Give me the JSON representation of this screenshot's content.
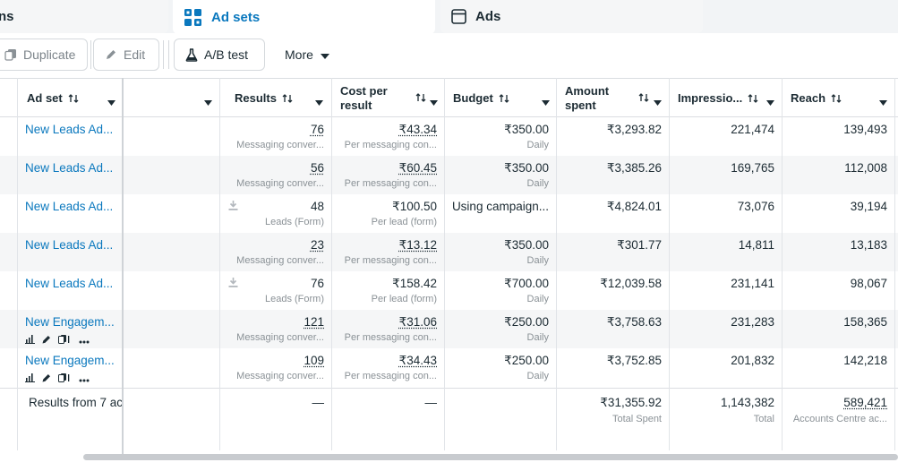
{
  "tabs": [
    {
      "label": "ns",
      "icon": "folder-icon"
    },
    {
      "label": "Ad sets",
      "icon": "grid-icon",
      "active": true
    },
    {
      "label": "Ads",
      "icon": "ad-square-icon"
    }
  ],
  "toolbar": {
    "duplicate_label": "Duplicate",
    "edit_label": "Edit",
    "ab_test_label": "A/B test",
    "more_label": "More"
  },
  "columns": {
    "adset": "Ad set",
    "results": "Results",
    "cost_per_result": "Cost per result",
    "budget": "Budget",
    "amount_spent": "Amount spent",
    "impressions": "Impressio...",
    "reach": "Reach"
  },
  "rows": [
    {
      "name": "New Leads Ad...",
      "results": "76",
      "results_sub": "Messaging conver...",
      "cpr": "₹43.34",
      "cpr_sub": "Per messaging con...",
      "budget": "₹350.00",
      "budget_sub": "Daily",
      "spent": "₹3,293.82",
      "impressions": "221,474",
      "reach": "139,493",
      "linked": true,
      "download": false,
      "tools": false
    },
    {
      "name": "New Leads Ad...",
      "results": "56",
      "results_sub": "Messaging conver...",
      "cpr": "₹60.45",
      "cpr_sub": "Per messaging con...",
      "budget": "₹350.00",
      "budget_sub": "Daily",
      "spent": "₹3,385.26",
      "impressions": "169,765",
      "reach": "112,008",
      "linked": true,
      "download": false,
      "tools": false
    },
    {
      "name": "New Leads Ad...",
      "results": "48",
      "results_sub": "Leads (Form)",
      "cpr": "₹100.50",
      "cpr_sub": "Per lead (form)",
      "budget": "Using campaign...",
      "budget_sub": "",
      "spent": "₹4,824.01",
      "impressions": "73,076",
      "reach": "39,194",
      "linked": false,
      "download": true,
      "tools": false
    },
    {
      "name": "New Leads Ad...",
      "results": "23",
      "results_sub": "Messaging conver...",
      "cpr": "₹13.12",
      "cpr_sub": "Per messaging con...",
      "budget": "₹350.00",
      "budget_sub": "Daily",
      "spent": "₹301.77",
      "impressions": "14,811",
      "reach": "13,183",
      "linked": true,
      "download": false,
      "tools": false
    },
    {
      "name": "New Leads Ad...",
      "results": "76",
      "results_sub": "Leads (Form)",
      "cpr": "₹158.42",
      "cpr_sub": "Per lead (form)",
      "budget": "₹700.00",
      "budget_sub": "Daily",
      "spent": "₹12,039.58",
      "impressions": "231,141",
      "reach": "98,067",
      "linked": false,
      "download": true,
      "tools": false
    },
    {
      "name": "New Engagem...",
      "results": "121",
      "results_sub": "Messaging conver...",
      "cpr": "₹31.06",
      "cpr_sub": "Per messaging con...",
      "budget": "₹250.00",
      "budget_sub": "Daily",
      "spent": "₹3,758.63",
      "impressions": "231,283",
      "reach": "158,365",
      "linked": true,
      "download": false,
      "tools": true
    },
    {
      "name": "New Engagem...",
      "results": "109",
      "results_sub": "Messaging conver...",
      "cpr": "₹34.43",
      "cpr_sub": "Per messaging con...",
      "budget": "₹250.00",
      "budget_sub": "Daily",
      "spent": "₹3,752.85",
      "impressions": "201,832",
      "reach": "142,218",
      "linked": true,
      "download": false,
      "tools": true
    }
  ],
  "footer": {
    "label": "Results from 7 ac",
    "results": "—",
    "cpr": "—",
    "spent": "₹31,355.92",
    "spent_sub": "Total Spent",
    "impressions": "1,143,382",
    "impressions_sub": "Total",
    "reach": "589,421",
    "reach_sub": "Accounts Centre ac..."
  }
}
